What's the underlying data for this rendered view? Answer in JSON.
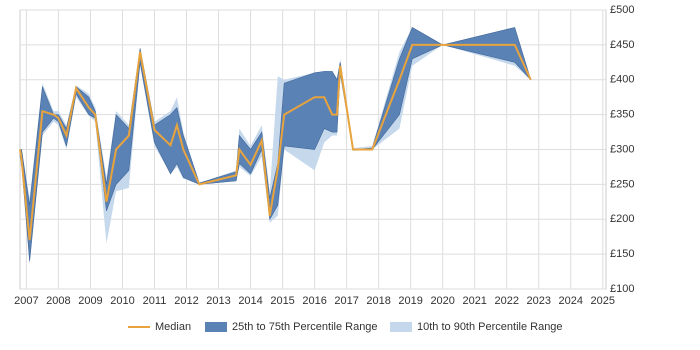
{
  "chart_data": {
    "type": "line-band",
    "x": [
      2006.8,
      2006.85,
      2007.1,
      2007.5,
      2007.85,
      2008,
      2008.25,
      2008.55,
      2008.95,
      2009.15,
      2009.5,
      2009.8,
      2010.2,
      2010.55,
      2011,
      2011.5,
      2011.7,
      2011.9,
      2012.4,
      2013.55,
      2013.65,
      2014,
      2014.35,
      2014.6,
      2014.85,
      2015.05,
      2016,
      2016.3,
      2016.55,
      2016.7,
      2016.8,
      2017.2,
      2017.8,
      2018.65,
      2019.05,
      2020,
      2022.25,
      2022.75
    ],
    "series": [
      {
        "name": "Median",
        "color": "#e8a33c",
        "kind": "line",
        "values": [
          300,
          285,
          170,
          355,
          350,
          345,
          320,
          388,
          360,
          350,
          225,
          300,
          320,
          440,
          328,
          306,
          335,
          300,
          250,
          263,
          300,
          278,
          313,
          205,
          273,
          350,
          375,
          375,
          350,
          350,
          420,
          300,
          300,
          400,
          450,
          450,
          450,
          400
        ]
      },
      {
        "name": "25th to 75th Percentile Range",
        "color": "#5b82b5",
        "kind": "band",
        "low": [
          290,
          280,
          140,
          325,
          345,
          340,
          305,
          380,
          350,
          345,
          212,
          250,
          270,
          425,
          310,
          265,
          280,
          260,
          250,
          255,
          280,
          265,
          300,
          200,
          220,
          305,
          300,
          330,
          325,
          325,
          410,
          300,
          300,
          350,
          430,
          450,
          425,
          400
        ],
        "high": [
          300,
          300,
          220,
          390,
          350,
          350,
          330,
          390,
          375,
          355,
          250,
          350,
          330,
          445,
          335,
          350,
          360,
          320,
          252,
          268,
          320,
          300,
          325,
          230,
          280,
          395,
          410,
          412,
          412,
          400,
          425,
          300,
          302,
          430,
          475,
          450,
          475,
          400
        ]
      },
      {
        "name": "10th to 90th Percentile Range",
        "color": "#c6d9ec",
        "kind": "band",
        "low": [
          280,
          275,
          135,
          320,
          340,
          335,
          300,
          375,
          348,
          340,
          165,
          240,
          245,
          420,
          305,
          265,
          275,
          258,
          250,
          255,
          275,
          262,
          290,
          195,
          205,
          300,
          270,
          310,
          320,
          320,
          405,
          298,
          300,
          330,
          420,
          450,
          420,
          400
        ],
        "high": [
          300,
          300,
          230,
          395,
          355,
          355,
          335,
          392,
          380,
          360,
          260,
          355,
          335,
          445,
          340,
          355,
          375,
          325,
          252,
          270,
          330,
          305,
          335,
          240,
          405,
          400,
          410,
          412,
          412,
          402,
          430,
          302,
          305,
          440,
          475,
          450,
          475,
          400
        ]
      }
    ],
    "xlim": [
      2006.8,
      2025.1
    ],
    "xticks": [
      2007,
      2008,
      2009,
      2010,
      2011,
      2012,
      2013,
      2014,
      2015,
      2016,
      2017,
      2018,
      2019,
      2020,
      2021,
      2022,
      2023,
      2024,
      2025
    ],
    "ylim": [
      100,
      500
    ],
    "yticks": [
      {
        "value": 100,
        "label": "£100"
      },
      {
        "value": 150,
        "label": "£150"
      },
      {
        "value": 200,
        "label": "£200"
      },
      {
        "value": 250,
        "label": "£250"
      },
      {
        "value": 300,
        "label": "£300"
      },
      {
        "value": 350,
        "label": "£350"
      },
      {
        "value": 400,
        "label": "£400"
      },
      {
        "value": 450,
        "label": "£450"
      },
      {
        "value": 500,
        "label": "£500"
      }
    ],
    "grid": true,
    "legend": "bottom"
  }
}
